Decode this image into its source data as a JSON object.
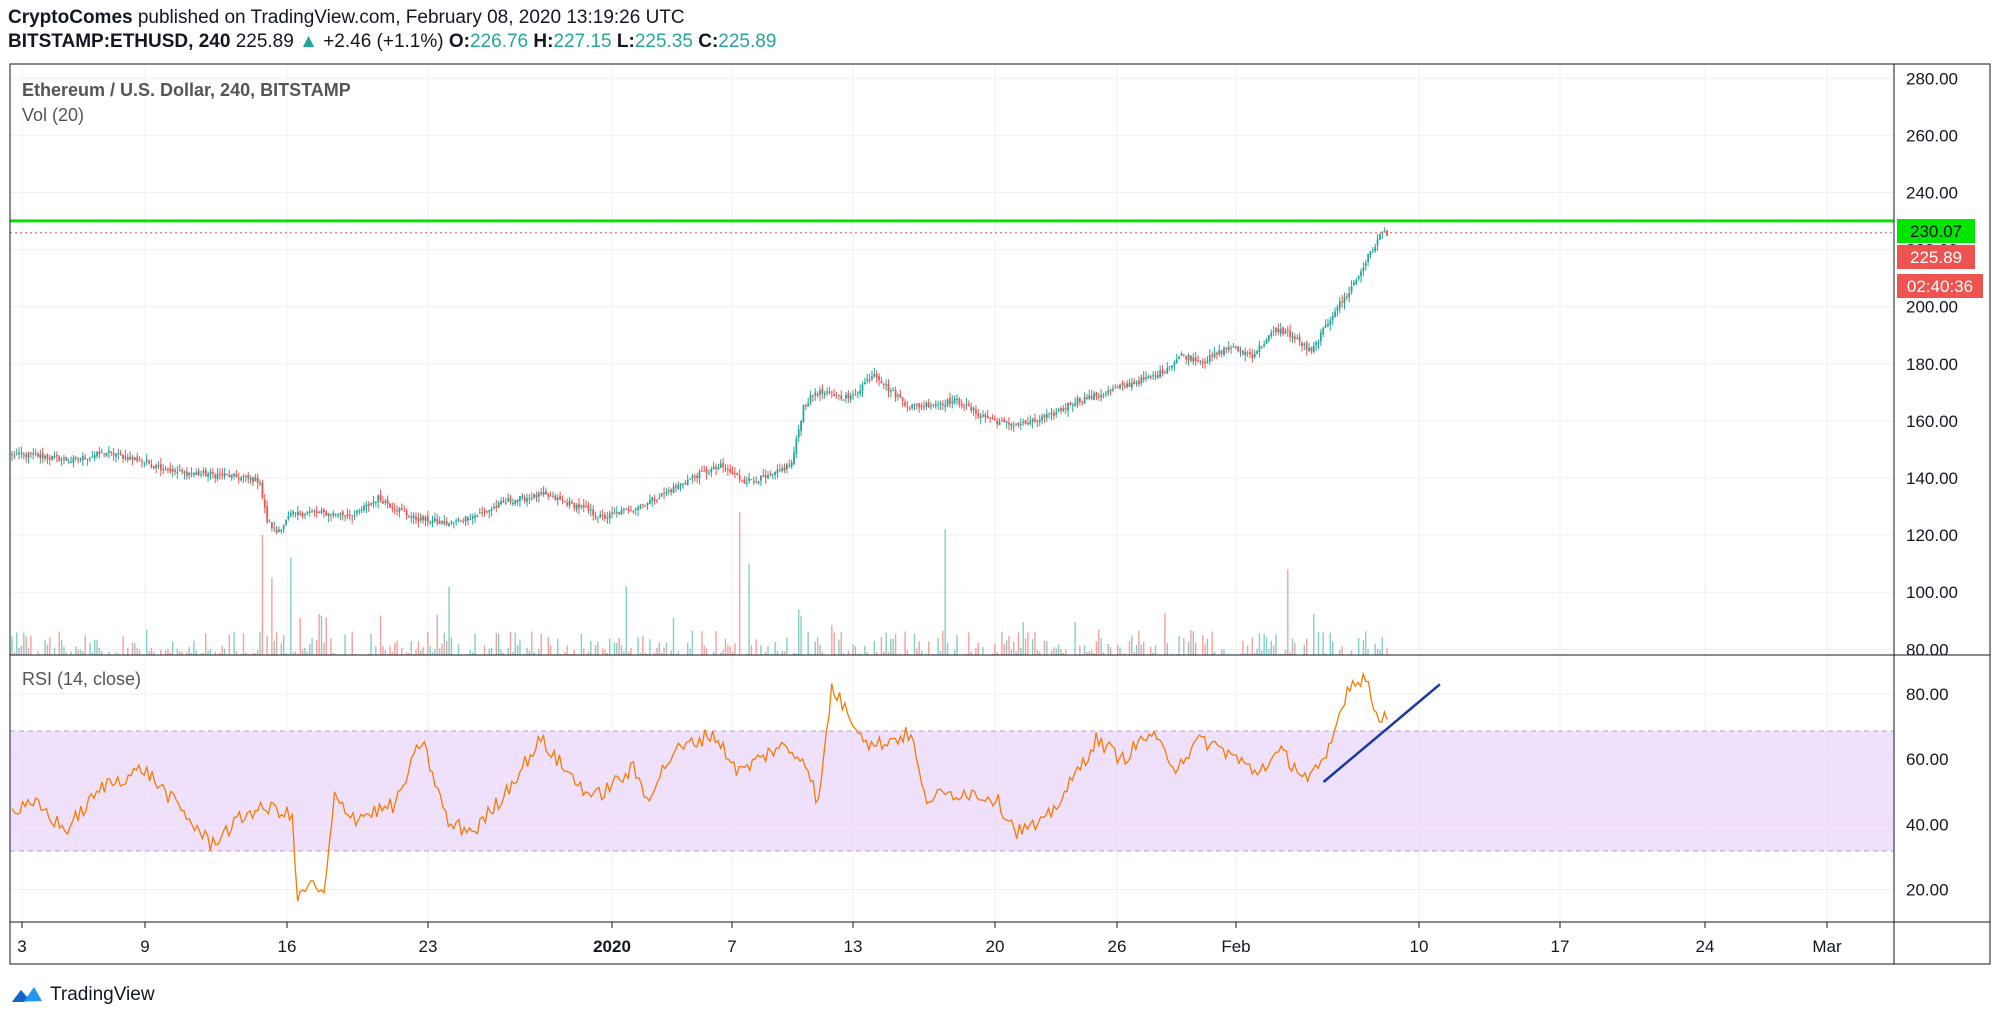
{
  "header": {
    "author": "CryptoComes",
    "published_text": "published on TradingView.com, February 08, 2020 13:19:26 UTC",
    "symbol": "BITSTAMP:ETHUSD, 240",
    "last": "225.89",
    "change_arrow": "▲",
    "change": "+2.46 (+1.1%)",
    "o_label": "O:",
    "o": "226.76",
    "h_label": "H:",
    "h": "227.15",
    "l_label": "L:",
    "l": "225.35",
    "c_label": "C:",
    "c": "225.89"
  },
  "legend": {
    "title": "Ethereum / U.S. Dollar, 240, BITSTAMP",
    "volume": "Vol (20)",
    "rsi": "RSI (14, close)"
  },
  "price_badges": {
    "line_level": "230.07",
    "last_price": "225.89",
    "countdown": "02:40:36"
  },
  "footer": {
    "brand": "TradingView",
    "icon": "tradingview-logo-icon"
  },
  "colors": {
    "up": "#26a69a",
    "down": "#ef5350",
    "level_line": "#00e600",
    "rsi_line": "#f57c00",
    "rsi_band": "#e9d5fb",
    "trendline": "#1a3a9e",
    "grid": "#eef0f3",
    "axis_text": "#131722"
  },
  "chart_data": [
    {
      "type": "candlestick",
      "title": "Ethereum / U.S. Dollar, 240, BITSTAMP",
      "ylim": [
        78,
        285
      ],
      "y_ticks": [
        "80.00",
        "100.00",
        "120.00",
        "140.00",
        "160.00",
        "180.00",
        "200.00",
        "220.00",
        "240.00",
        "260.00",
        "280.00"
      ],
      "x_ticks": [
        "3",
        "9",
        "16",
        "23",
        "2020",
        "7",
        "13",
        "20",
        "26",
        "Feb",
        "10",
        "17",
        "24",
        "Mar"
      ],
      "horizontal_level": 230.07,
      "last_price": 225.89,
      "path_keypoints": [
        [
          0,
          148
        ],
        [
          10,
          148
        ],
        [
          25,
          146
        ],
        [
          40,
          149
        ],
        [
          55,
          146
        ],
        [
          70,
          142
        ],
        [
          90,
          141
        ],
        [
          105,
          139
        ],
        [
          106,
          133
        ],
        [
          108,
          125
        ],
        [
          112,
          121
        ],
        [
          118,
          127
        ],
        [
          125,
          128
        ],
        [
          145,
          127
        ],
        [
          155,
          133
        ],
        [
          170,
          126
        ],
        [
          185,
          124
        ],
        [
          200,
          128
        ],
        [
          210,
          132
        ],
        [
          225,
          134
        ],
        [
          240,
          130
        ],
        [
          250,
          126
        ],
        [
          265,
          130
        ],
        [
          275,
          134
        ],
        [
          290,
          141
        ],
        [
          300,
          144
        ],
        [
          310,
          139
        ],
        [
          320,
          140
        ],
        [
          330,
          145
        ],
        [
          335,
          165
        ],
        [
          340,
          170
        ],
        [
          355,
          168
        ],
        [
          365,
          177
        ],
        [
          370,
          172
        ],
        [
          380,
          165
        ],
        [
          400,
          167
        ],
        [
          410,
          162
        ],
        [
          420,
          159
        ],
        [
          430,
          159
        ],
        [
          440,
          162
        ],
        [
          450,
          167
        ],
        [
          460,
          169
        ],
        [
          470,
          172
        ],
        [
          485,
          176
        ],
        [
          495,
          183
        ],
        [
          505,
          181
        ],
        [
          515,
          186
        ],
        [
          525,
          183
        ],
        [
          535,
          192
        ],
        [
          540,
          191
        ],
        [
          550,
          184
        ],
        [
          560,
          199
        ],
        [
          565,
          204
        ],
        [
          570,
          211
        ],
        [
          575,
          219
        ],
        [
          580,
          226
        ],
        [
          582,
          225.89
        ]
      ],
      "volume_spikes": [
        [
          106,
          120
        ],
        [
          110,
          105
        ],
        [
          118,
          112
        ],
        [
          185,
          102
        ],
        [
          260,
          102
        ],
        [
          308,
          128
        ],
        [
          312,
          110
        ],
        [
          395,
          122
        ],
        [
          540,
          108
        ]
      ]
    },
    {
      "type": "line",
      "title": "RSI (14, close)",
      "ylim": [
        10,
        92
      ],
      "y_ticks": [
        "20.00",
        "40.00",
        "60.00",
        "80.00"
      ],
      "band": [
        30,
        70
      ],
      "keypoints": [
        [
          0,
          44
        ],
        [
          10,
          46
        ],
        [
          20,
          38
        ],
        [
          35,
          52
        ],
        [
          50,
          57
        ],
        [
          60,
          48
        ],
        [
          75,
          34
        ],
        [
          90,
          44
        ],
        [
          100,
          45
        ],
        [
          106,
          42
        ],
        [
          108,
          16
        ],
        [
          112,
          22
        ],
        [
          118,
          18
        ],
        [
          122,
          48
        ],
        [
          130,
          42
        ],
        [
          145,
          46
        ],
        [
          155,
          66
        ],
        [
          165,
          40
        ],
        [
          175,
          38
        ],
        [
          185,
          48
        ],
        [
          200,
          66
        ],
        [
          210,
          56
        ],
        [
          220,
          48
        ],
        [
          235,
          57
        ],
        [
          240,
          48
        ],
        [
          250,
          62
        ],
        [
          265,
          68
        ],
        [
          275,
          56
        ],
        [
          290,
          64
        ],
        [
          300,
          60
        ],
        [
          305,
          46
        ],
        [
          310,
          82
        ],
        [
          318,
          72
        ],
        [
          325,
          64
        ],
        [
          340,
          68
        ],
        [
          345,
          48
        ],
        [
          360,
          50
        ],
        [
          372,
          48
        ],
        [
          380,
          38
        ],
        [
          390,
          40
        ],
        [
          400,
          52
        ],
        [
          410,
          66
        ],
        [
          420,
          60
        ],
        [
          430,
          68
        ],
        [
          440,
          58
        ],
        [
          450,
          66
        ],
        [
          460,
          62
        ],
        [
          470,
          56
        ],
        [
          480,
          62
        ],
        [
          490,
          54
        ],
        [
          496,
          58
        ],
        [
          500,
          68
        ],
        [
          505,
          82
        ],
        [
          512,
          86
        ],
        [
          516,
          72
        ],
        [
          520,
          74
        ]
      ],
      "trendline": [
        [
          496,
          53
        ],
        [
          540,
          83
        ]
      ]
    }
  ]
}
